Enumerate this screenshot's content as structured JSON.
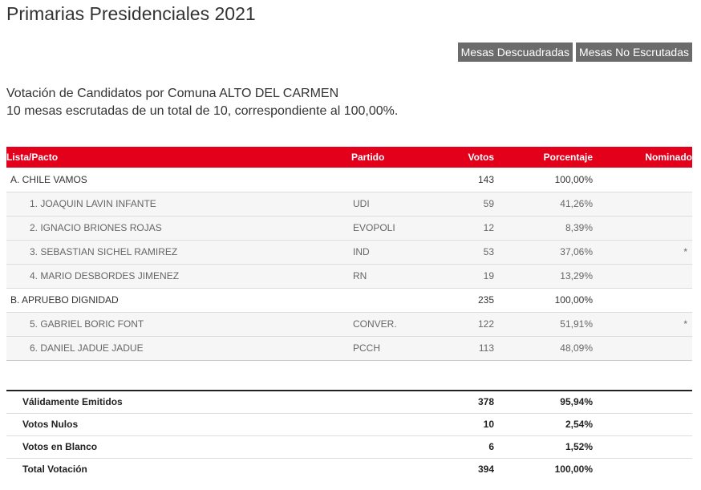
{
  "page": {
    "title": "Primarias Presidenciales 2021"
  },
  "buttons": {
    "descuadradas": "Mesas Descuadradas",
    "no_escrutadas": "Mesas No Escrutadas"
  },
  "info": {
    "line1": "Votación de Candidatos por Comuna ALTO DEL CARMEN",
    "line2": "10 mesas escrutadas de un total de 10, correspondiente al 100,00%."
  },
  "table": {
    "headers": {
      "lista": "Lista/Pacto",
      "partido": "Partido",
      "votos": "Votos",
      "porcentaje": "Porcentaje",
      "nominado": "Nominado"
    },
    "rows": [
      {
        "lista": "A. CHILE VAMOS",
        "partido": "",
        "votos": "143",
        "porcentaje": "100,00%",
        "nominado": ""
      },
      {
        "lista": "1. JOAQUIN LAVIN INFANTE",
        "partido": "UDI",
        "votos": "59",
        "porcentaje": "41,26%",
        "nominado": ""
      },
      {
        "lista": "2. IGNACIO BRIONES ROJAS",
        "partido": "EVOPOLI",
        "votos": "12",
        "porcentaje": "8,39%",
        "nominado": ""
      },
      {
        "lista": "3. SEBASTIAN SICHEL RAMIREZ",
        "partido": "IND",
        "votos": "53",
        "porcentaje": "37,06%",
        "nominado": "*"
      },
      {
        "lista": "4. MARIO DESBORDES JIMENEZ",
        "partido": "RN",
        "votos": "19",
        "porcentaje": "13,29%",
        "nominado": ""
      },
      {
        "lista": "B. APRUEBO DIGNIDAD",
        "partido": "",
        "votos": "235",
        "porcentaje": "100,00%",
        "nominado": ""
      },
      {
        "lista": "5. GABRIEL BORIC FONT",
        "partido": "CONVER.",
        "votos": "122",
        "porcentaje": "51,91%",
        "nominado": "*"
      },
      {
        "lista": "6. DANIEL JADUE JADUE",
        "partido": "PCCH",
        "votos": "113",
        "porcentaje": "48,09%",
        "nominado": ""
      }
    ]
  },
  "totals": [
    {
      "label": "Válidamente Emitidos",
      "votos": "378",
      "porcentaje": "95,94%"
    },
    {
      "label": "Votos Nulos",
      "votos": "10",
      "porcentaje": "2,54%"
    },
    {
      "label": "Votos en Blanco",
      "votos": "6",
      "porcentaje": "1,52%"
    },
    {
      "label": "Total Votación",
      "votos": "394",
      "porcentaje": "100,00%"
    }
  ],
  "colors": {
    "header_red": "#e2001a",
    "button_gray": "#6b6b6b"
  }
}
